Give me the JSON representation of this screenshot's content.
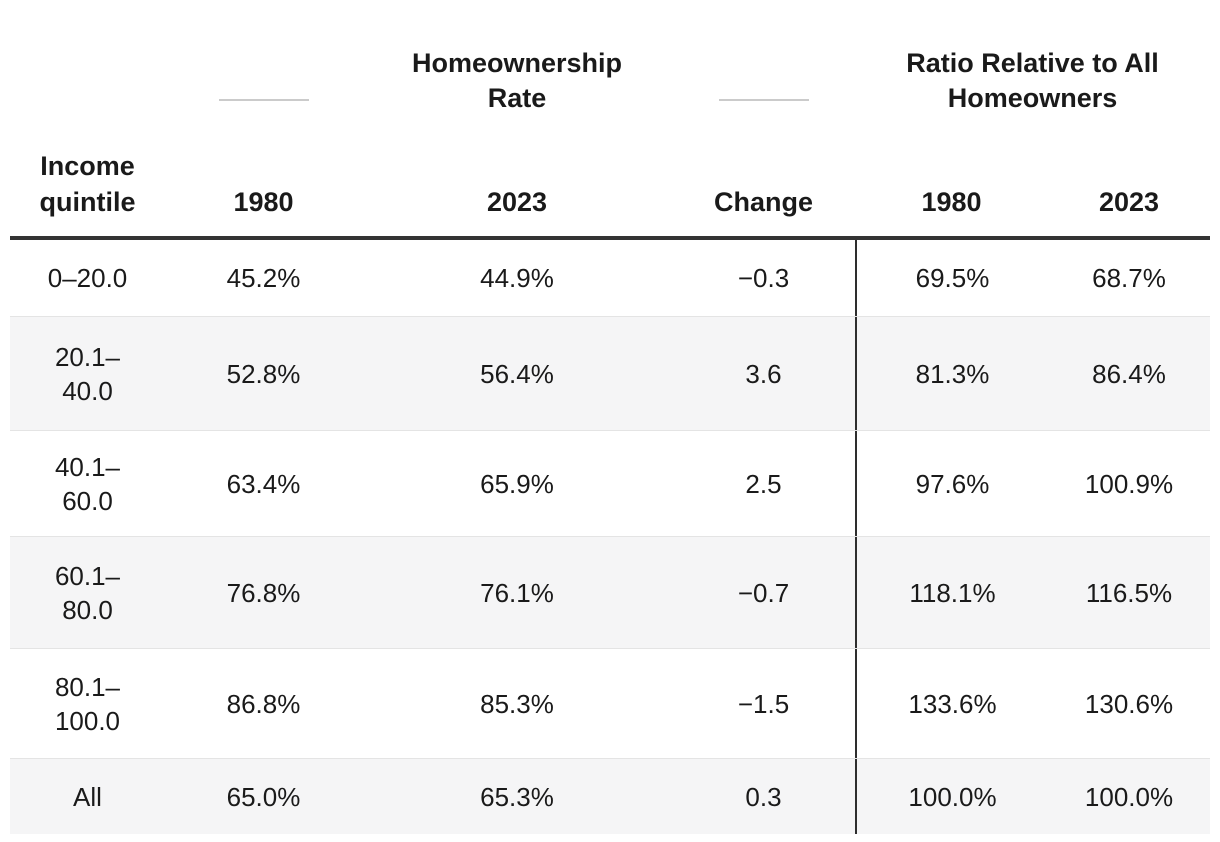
{
  "colors": {
    "text": "#1a1a1a",
    "heavy_rule": "#333333",
    "vertical_divider": "#2e2e2e",
    "row_stripe": "#f5f5f6",
    "row_separator": "#e4e4e4",
    "spanner_rule": "#cbcbcb",
    "background": "#ffffff"
  },
  "header": {
    "stub_label": "Income quintile",
    "spanner_homeownership": "Homeownership Rate",
    "spanner_ratio": "Ratio Relative to All Homeowners",
    "columns": [
      "1980",
      "2023",
      "Change",
      "1980",
      "2023"
    ]
  },
  "rows": [
    {
      "quintile": "0–20.0",
      "rate_1980": "45.2%",
      "rate_2023": "44.9%",
      "change": "−0.3",
      "ratio_1980": "69.5%",
      "ratio_2023": "68.7%"
    },
    {
      "quintile": "20.1–40.0",
      "rate_1980": "52.8%",
      "rate_2023": "56.4%",
      "change": "3.6",
      "ratio_1980": "81.3%",
      "ratio_2023": "86.4%"
    },
    {
      "quintile": "40.1–60.0",
      "rate_1980": "63.4%",
      "rate_2023": "65.9%",
      "change": "2.5",
      "ratio_1980": "97.6%",
      "ratio_2023": "100.9%"
    },
    {
      "quintile": "60.1–80.0",
      "rate_1980": "76.8%",
      "rate_2023": "76.1%",
      "change": "−0.7",
      "ratio_1980": "118.1%",
      "ratio_2023": "116.5%"
    },
    {
      "quintile": "80.1–100.0",
      "rate_1980": "86.8%",
      "rate_2023": "85.3%",
      "change": "−1.5",
      "ratio_1980": "133.6%",
      "ratio_2023": "130.6%"
    },
    {
      "quintile": "All",
      "rate_1980": "65.0%",
      "rate_2023": "65.3%",
      "change": "0.3",
      "ratio_1980": "100.0%",
      "ratio_2023": "100.0%"
    }
  ],
  "chart_data": {
    "type": "table",
    "title": "",
    "stub_label": "Income quintile",
    "column_groups": [
      {
        "label": "Homeownership Rate",
        "columns": [
          "1980",
          "2023",
          "Change"
        ]
      },
      {
        "label": "Ratio Relative to All Homeowners",
        "columns": [
          "1980",
          "2023"
        ]
      }
    ],
    "columns": [
      "Income quintile",
      "Homeownership Rate 1980",
      "Homeownership Rate 2023",
      "Change",
      "Ratio to All Homeowners 1980",
      "Ratio to All Homeowners 2023"
    ],
    "rows": [
      [
        "0–20.0",
        45.2,
        44.9,
        -0.3,
        69.5,
        68.7
      ],
      [
        "20.1–40.0",
        52.8,
        56.4,
        3.6,
        81.3,
        86.4
      ],
      [
        "40.1–60.0",
        63.4,
        65.9,
        2.5,
        97.6,
        100.9
      ],
      [
        "60.1–80.0",
        76.8,
        76.1,
        -0.7,
        118.1,
        116.5
      ],
      [
        "80.1–100.0",
        86.8,
        85.3,
        -1.5,
        133.6,
        130.6
      ],
      [
        "All",
        65.0,
        65.3,
        0.3,
        100.0,
        100.0
      ]
    ],
    "units": "percent",
    "layout_hints": {
      "striped_rows": true,
      "heavy_rule_below_header": true,
      "vertical_divider_before_ratio_columns": true
    }
  }
}
